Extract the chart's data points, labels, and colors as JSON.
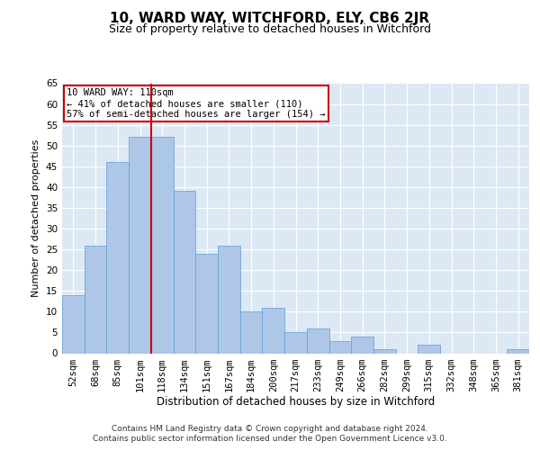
{
  "title1": "10, WARD WAY, WITCHFORD, ELY, CB6 2JR",
  "title2": "Size of property relative to detached houses in Witchford",
  "xlabel": "Distribution of detached houses by size in Witchford",
  "ylabel": "Number of detached properties",
  "categories": [
    "52sqm",
    "68sqm",
    "85sqm",
    "101sqm",
    "118sqm",
    "134sqm",
    "151sqm",
    "167sqm",
    "184sqm",
    "200sqm",
    "217sqm",
    "233sqm",
    "249sqm",
    "266sqm",
    "282sqm",
    "299sqm",
    "315sqm",
    "332sqm",
    "348sqm",
    "365sqm",
    "381sqm"
  ],
  "values": [
    14,
    26,
    46,
    52,
    52,
    39,
    24,
    26,
    10,
    11,
    5,
    6,
    3,
    4,
    1,
    0,
    2,
    0,
    0,
    0,
    1
  ],
  "bar_color": "#aec6e8",
  "bar_edge_color": "#5a9fd4",
  "vline_color": "#cc0000",
  "annotation_text": "10 WARD WAY: 110sqm\n← 41% of detached houses are smaller (110)\n57% of semi-detached houses are larger (154) →",
  "annotation_box_color": "#ffffff",
  "annotation_box_edge": "#cc0000",
  "ylim": [
    0,
    65
  ],
  "yticks": [
    0,
    5,
    10,
    15,
    20,
    25,
    30,
    35,
    40,
    45,
    50,
    55,
    60,
    65
  ],
  "bg_color": "#dde8f5",
  "footer": "Contains HM Land Registry data © Crown copyright and database right 2024.\nContains public sector information licensed under the Open Government Licence v3.0.",
  "title_fontsize": 11,
  "subtitle_fontsize": 9,
  "xlabel_fontsize": 8.5,
  "ylabel_fontsize": 8,
  "tick_fontsize": 7.5,
  "footer_fontsize": 6.5,
  "ann_fontsize": 7.5
}
